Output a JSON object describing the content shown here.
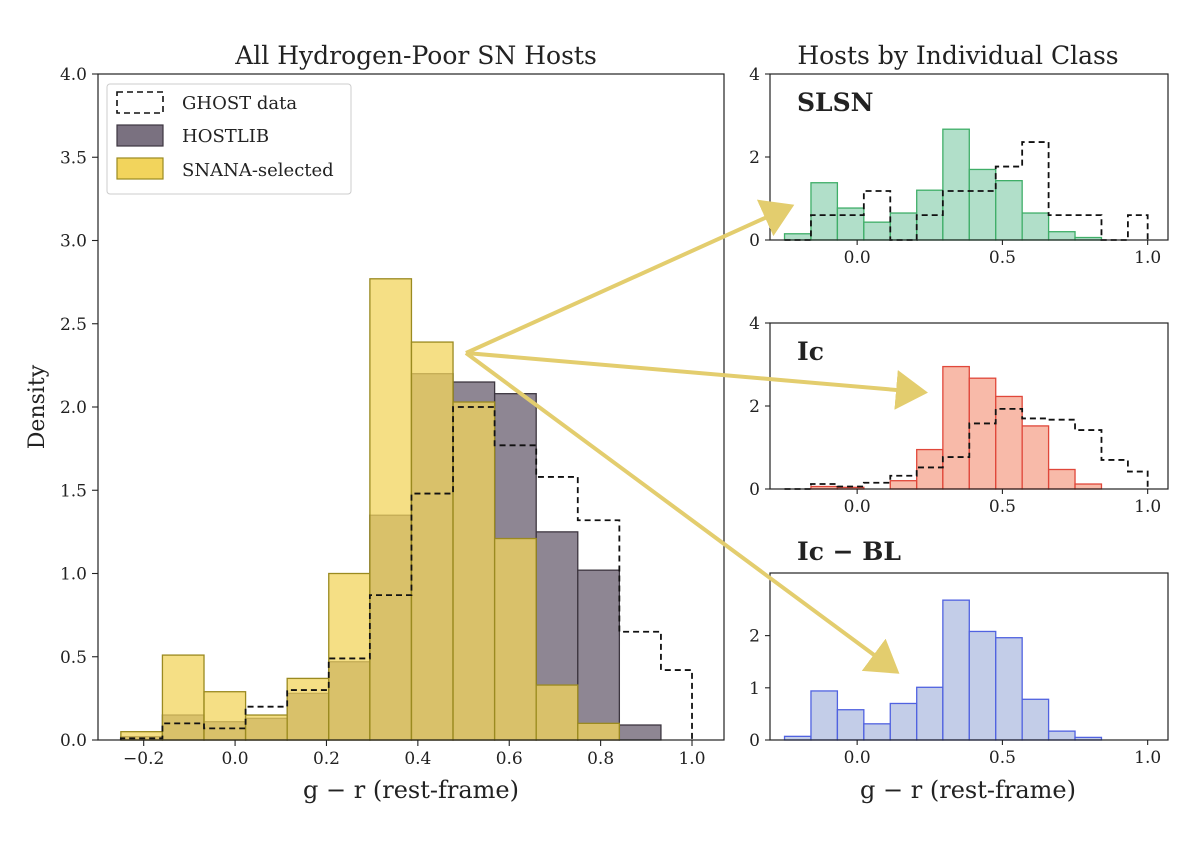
{
  "colors": {
    "ghost": "#111111",
    "hostlib_fill": "#7a7180",
    "hostlib_edge": "#3d3640",
    "snana_fill": "#f2d45c",
    "snana_edge": "#9a8a20",
    "slsn_fill": "#a8dcc3",
    "slsn_edge": "#3fae68",
    "ic_fill": "#f7b3a0",
    "ic_edge": "#e0473a",
    "icbl_fill": "#bcc8e6",
    "icbl_edge": "#5062e0",
    "arrow": "#e3cd6e"
  },
  "chart_data": [
    {
      "type": "bar",
      "id": "main",
      "title": "All Hydrogen-Poor SN Hosts",
      "xlabel": "g − r (rest-frame)",
      "ylabel": "Density",
      "xlim": [
        -0.3,
        1.07
      ],
      "ylim": [
        0,
        4.0
      ],
      "xticks": [
        -0.2,
        0.0,
        0.2,
        0.4,
        0.6,
        0.8,
        1.0
      ],
      "xtick_labels": [
        "−0.2",
        "0.0",
        "0.2",
        "0.4",
        "0.6",
        "0.8",
        "1.0"
      ],
      "yticks": [
        0.0,
        0.5,
        1.0,
        1.5,
        2.0,
        2.5,
        3.0,
        3.5,
        4.0
      ],
      "ytick_labels": [
        "0.0",
        "0.5",
        "1.0",
        "1.5",
        "2.0",
        "2.5",
        "3.0",
        "3.5",
        "4.0"
      ],
      "bin_edges": [
        -0.25,
        -0.159,
        -0.068,
        0.023,
        0.114,
        0.205,
        0.295,
        0.386,
        0.477,
        0.568,
        0.659,
        0.75,
        0.841,
        0.932,
        1.0
      ],
      "legend": [
        "GHOST data",
        "HOSTLIB",
        "SNANA-selected"
      ],
      "series": [
        {
          "name": "GHOST data",
          "style": "step",
          "values": [
            0.01,
            0.1,
            0.07,
            0.2,
            0.3,
            0.49,
            0.87,
            1.48,
            2.0,
            1.77,
            1.58,
            1.32,
            0.65,
            0.42
          ]
        },
        {
          "name": "HOSTLIB",
          "style": "bar",
          "values": [
            0.02,
            0.15,
            0.11,
            0.13,
            0.28,
            0.47,
            1.35,
            2.2,
            2.15,
            2.08,
            1.25,
            1.02,
            0.09,
            0.0
          ]
        },
        {
          "name": "SNANA-selected",
          "style": "bar",
          "values": [
            0.05,
            0.51,
            0.29,
            0.15,
            0.37,
            1.0,
            2.77,
            2.39,
            2.03,
            1.21,
            0.33,
            0.1,
            0.0,
            0.0
          ]
        }
      ]
    },
    {
      "type": "bar",
      "id": "slsn",
      "title": "Hosts by Individual Class",
      "label": "SLSN",
      "xlim": [
        -0.3,
        1.07
      ],
      "ylim": [
        0,
        4
      ],
      "xticks": [
        0.0,
        0.5,
        1.0
      ],
      "xtick_labels": [
        "0.0",
        "0.5",
        "1.0"
      ],
      "yticks": [
        0,
        2,
        4
      ],
      "ytick_labels": [
        "0",
        "2",
        "4"
      ],
      "bin_edges": [
        -0.25,
        -0.159,
        -0.068,
        0.023,
        0.114,
        0.205,
        0.295,
        0.386,
        0.477,
        0.568,
        0.659,
        0.75,
        0.841,
        0.932,
        1.0
      ],
      "series": [
        {
          "name": "SNANA-selected",
          "style": "bar",
          "values": [
            0.15,
            1.38,
            0.77,
            0.43,
            0.65,
            1.2,
            2.67,
            1.7,
            1.43,
            0.65,
            0.2,
            0.06,
            0.0,
            0.0
          ]
        },
        {
          "name": "GHOST data",
          "style": "step",
          "values": [
            0.0,
            0.6,
            0.6,
            1.18,
            0.0,
            0.6,
            1.18,
            1.18,
            1.77,
            2.36,
            0.6,
            0.6,
            0.0,
            0.6
          ]
        }
      ]
    },
    {
      "type": "bar",
      "id": "ic",
      "label": "Ic",
      "xlim": [
        -0.3,
        1.07
      ],
      "ylim": [
        0,
        4
      ],
      "xticks": [
        0.0,
        0.5,
        1.0
      ],
      "xtick_labels": [
        "0.0",
        "0.5",
        "1.0"
      ],
      "yticks": [
        0,
        2,
        4
      ],
      "ytick_labels": [
        "0",
        "2",
        "4"
      ],
      "bin_edges": [
        -0.25,
        -0.159,
        -0.068,
        0.023,
        0.114,
        0.205,
        0.295,
        0.386,
        0.477,
        0.568,
        0.659,
        0.75,
        0.841,
        0.932,
        1.0
      ],
      "series": [
        {
          "name": "SNANA-selected",
          "style": "bar",
          "values": [
            0.0,
            0.06,
            0.04,
            0.0,
            0.2,
            0.95,
            2.95,
            2.67,
            2.23,
            1.52,
            0.47,
            0.12,
            0.0,
            0.0
          ]
        },
        {
          "name": "GHOST data",
          "style": "step",
          "values": [
            0.0,
            0.12,
            0.06,
            0.15,
            0.32,
            0.52,
            0.77,
            1.58,
            1.93,
            1.7,
            1.67,
            1.42,
            0.7,
            0.42
          ]
        }
      ]
    },
    {
      "type": "bar",
      "id": "icbl",
      "label": "Ic − BL",
      "xlabel": "g − r (rest-frame)",
      "xlim": [
        -0.3,
        1.07
      ],
      "ylim": [
        0,
        3.2
      ],
      "xticks": [
        0.0,
        0.5,
        1.0
      ],
      "xtick_labels": [
        "0.0",
        "0.5",
        "1.0"
      ],
      "yticks": [
        0,
        1,
        2
      ],
      "ytick_labels": [
        "0",
        "1",
        "2"
      ],
      "bin_edges": [
        -0.25,
        -0.159,
        -0.068,
        0.023,
        0.114,
        0.205,
        0.295,
        0.386,
        0.477,
        0.568,
        0.659,
        0.75,
        0.841,
        0.932,
        1.0
      ],
      "series": [
        {
          "name": "SNANA-selected",
          "style": "bar",
          "values": [
            0.07,
            0.94,
            0.58,
            0.31,
            0.7,
            1.01,
            2.68,
            2.08,
            1.96,
            0.78,
            0.17,
            0.05,
            0.0,
            0.0
          ]
        }
      ]
    }
  ]
}
